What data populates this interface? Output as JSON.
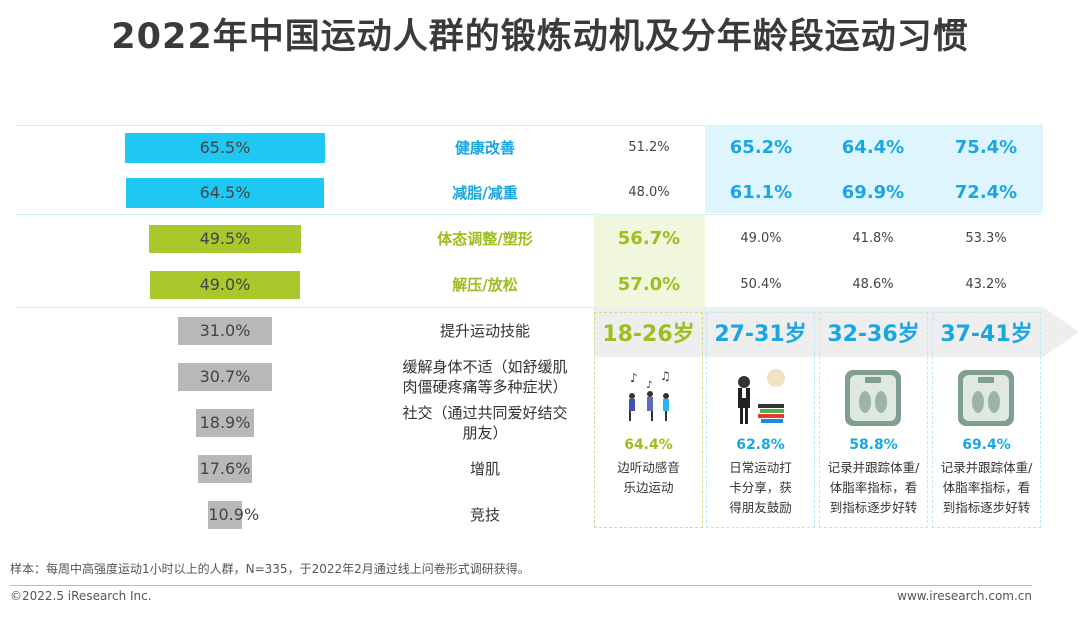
{
  "title": "2022年中国运动人群的锻炼动机及分年龄段运动习惯",
  "colors": {
    "blue": "#1ec8f2",
    "green": "#a8c82c",
    "grey": "#b8b8b8",
    "lightblue": "#dff5fd",
    "lightgreen": "#f1f7dc"
  },
  "chart_data": {
    "type": "bar",
    "categories": [
      "健康改善",
      "减脂/减重",
      "体态调整/塑形",
      "解压/放松",
      "提升运动技能",
      "缓解身体不适（如舒缓肌肉僵硬疼痛等多种症状）",
      "社交（通过共同爱好结交朋友）",
      "增肌",
      "竞技"
    ],
    "category_lines": [
      [
        "健康改善"
      ],
      [
        "减脂/减重"
      ],
      [
        "体态调整/塑形"
      ],
      [
        "解压/放松"
      ],
      [
        "提升运动技能"
      ],
      [
        "缓解身体不适（如舒缓肌",
        "肉僵硬疼痛等多种症状）"
      ],
      [
        "社交（通过共同爱好结交",
        "朋友）"
      ],
      [
        "增肌"
      ],
      [
        "竞技"
      ]
    ],
    "values": [
      65.5,
      64.5,
      49.5,
      49.0,
      31.0,
      30.7,
      18.9,
      17.6,
      10.9
    ],
    "labels": [
      "65.5%",
      "64.5%",
      "49.5%",
      "49.0%",
      "31.0%",
      "30.7%",
      "18.9%",
      "17.6%",
      "10.9%"
    ],
    "groups": [
      "blue",
      "blue",
      "green",
      "green",
      "grey",
      "grey",
      "grey",
      "grey",
      "grey"
    ],
    "age_groups": [
      "18-26岁",
      "27-31岁",
      "32-36岁",
      "37-41岁"
    ],
    "age_table": [
      [
        "51.2%",
        "65.2%",
        "64.4%",
        "75.4%"
      ],
      [
        "48.0%",
        "61.1%",
        "69.9%",
        "72.4%"
      ],
      [
        "56.7%",
        "49.0%",
        "41.8%",
        "53.3%"
      ],
      [
        "57.0%",
        "50.4%",
        "48.6%",
        "43.2%"
      ]
    ]
  },
  "habits": [
    {
      "pct": "64.4%",
      "lines": [
        "边听动感音",
        "乐边运动"
      ]
    },
    {
      "pct": "62.8%",
      "lines": [
        "日常运动打",
        "卡分享，获",
        "得朋友鼓励"
      ]
    },
    {
      "pct": "58.8%",
      "lines": [
        "记录并跟踪体重/",
        "体脂率指标，看",
        "到指标逐步好转"
      ]
    },
    {
      "pct": "69.4%",
      "lines": [
        "记录并跟踪体重/",
        "体脂率指标，看",
        "到指标逐步好转"
      ]
    }
  ],
  "footer": {
    "note": "样本：每周中高强度运动1小时以上的人群，N=335，于2022年2月通过线上问卷形式调研获得。",
    "copyright": "©2022.5 iResearch Inc.",
    "site": "www.iresearch.com.cn"
  }
}
